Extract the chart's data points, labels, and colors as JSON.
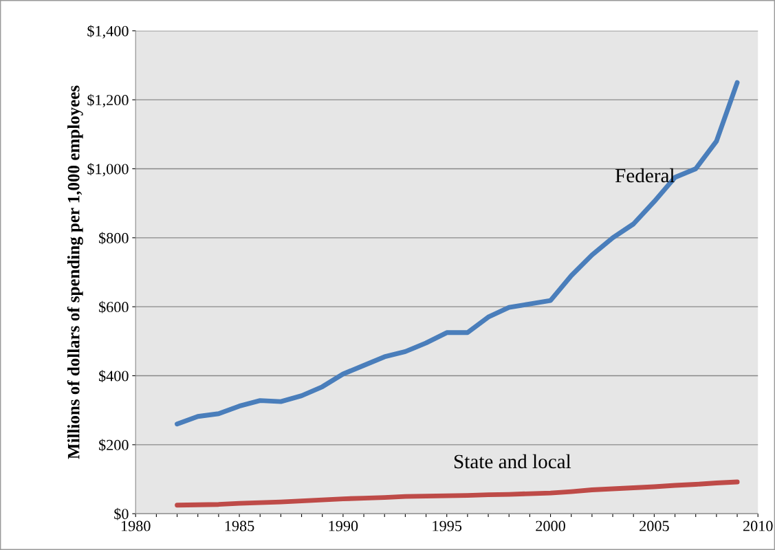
{
  "chart_data": {
    "type": "line",
    "ylabel": "Millions of dollars of spending per 1,000 employees",
    "x": [
      1982,
      1983,
      1984,
      1985,
      1986,
      1987,
      1988,
      1989,
      1990,
      1991,
      1992,
      1993,
      1994,
      1995,
      1996,
      1997,
      1998,
      1999,
      2000,
      2001,
      2002,
      2003,
      2004,
      2005,
      2006,
      2007,
      2008,
      2009
    ],
    "series": [
      {
        "name": "Federal",
        "color": "#4a7ebb",
        "values": [
          260,
          282,
          290,
          312,
          328,
          325,
          342,
          368,
          405,
          430,
          455,
          470,
          495,
          525,
          525,
          570,
          598,
          608,
          618,
          690,
          750,
          800,
          840,
          905,
          975,
          1000,
          1080,
          1250
        ]
      },
      {
        "name": "State and local",
        "color": "#be4b48",
        "values": [
          25,
          26,
          27,
          30,
          32,
          34,
          37,
          40,
          43,
          45,
          47,
          50,
          51,
          52,
          53,
          55,
          56,
          58,
          60,
          64,
          69,
          72,
          75,
          78,
          82,
          85,
          89,
          92
        ]
      }
    ],
    "xlim": [
      1980,
      2010
    ],
    "xticks": [
      1980,
      {
        "value": 1981,
        "label": null
      },
      {
        "value": 1982,
        "label": null
      },
      {
        "value": 1983,
        "label": null
      },
      {
        "value": 1984,
        "label": null
      },
      1985,
      {
        "value": 1986,
        "label": null
      },
      {
        "value": 1987,
        "label": null
      },
      {
        "value": 1988,
        "label": null
      },
      {
        "value": 1989,
        "label": null
      },
      1990,
      {
        "value": 1991,
        "label": null
      },
      {
        "value": 1992,
        "label": null
      },
      {
        "value": 1993,
        "label": null
      },
      {
        "value": 1994,
        "label": null
      },
      1995,
      {
        "value": 1996,
        "label": null
      },
      {
        "value": 1997,
        "label": null
      },
      {
        "value": 1998,
        "label": null
      },
      {
        "value": 1999,
        "label": null
      },
      2000,
      {
        "value": 2001,
        "label": null
      },
      {
        "value": 2002,
        "label": null
      },
      {
        "value": 2003,
        "label": null
      },
      {
        "value": 2004,
        "label": null
      },
      2005,
      {
        "value": 2006,
        "label": null
      },
      {
        "value": 2007,
        "label": null
      },
      {
        "value": 2008,
        "label": null
      },
      {
        "value": 2009,
        "label": null
      },
      2010
    ],
    "ylim": [
      0,
      1400
    ],
    "yticks": [
      {
        "value": 0,
        "label": "$0"
      },
      {
        "value": 200,
        "label": "$200"
      },
      {
        "value": 400,
        "label": "$400"
      },
      {
        "value": 600,
        "label": "$600"
      },
      {
        "value": 800,
        "label": "$800"
      },
      {
        "value": 1000,
        "label": "$1,000"
      },
      {
        "value": 1200,
        "label": "$1,200"
      },
      {
        "value": 1400,
        "label": "$1,400"
      }
    ],
    "grid": "y",
    "marker": "none",
    "line_style": "solid",
    "legend": false
  }
}
